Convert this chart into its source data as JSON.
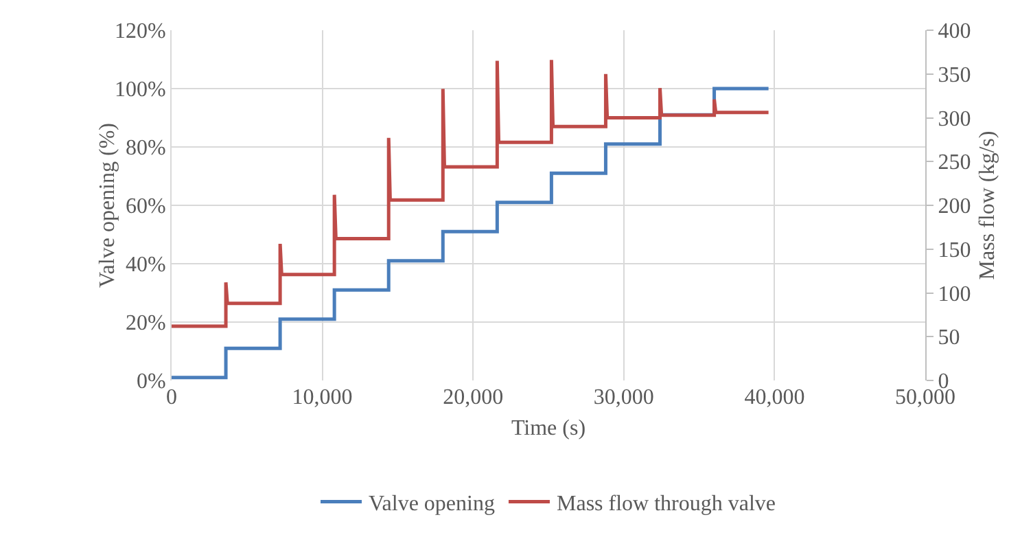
{
  "chart_data": {
    "type": "line",
    "xlabel": "Time (s)",
    "ylabel": "Valve opening (%)",
    "y2label": "Mass flow (kg/s)",
    "xlim": [
      0,
      50000
    ],
    "xticks": [
      {
        "value": 0,
        "label": "0"
      },
      {
        "value": 10000,
        "label": "10,000"
      },
      {
        "value": 20000,
        "label": "20,000"
      },
      {
        "value": 30000,
        "label": "30,000"
      },
      {
        "value": 40000,
        "label": "40,000"
      },
      {
        "value": 50000,
        "label": "50,000"
      }
    ],
    "ylim": [
      0,
      120
    ],
    "yticks": [
      {
        "value": 0,
        "label": "0%"
      },
      {
        "value": 20,
        "label": "20%"
      },
      {
        "value": 40,
        "label": "40%"
      },
      {
        "value": 60,
        "label": "60%"
      },
      {
        "value": 80,
        "label": "80%"
      },
      {
        "value": 100,
        "label": "100%"
      },
      {
        "value": 120,
        "label": "120%"
      }
    ],
    "y2lim": [
      0,
      400
    ],
    "y2ticks": [
      0,
      50,
      100,
      150,
      200,
      250,
      300,
      350,
      400
    ],
    "grid": true,
    "legend": "bottom",
    "series": [
      {
        "name": "Valve opening",
        "type": "step",
        "color": "#4a7ebb",
        "x": [
          0,
          3600,
          7200,
          10800,
          14400,
          18000,
          21600,
          25200,
          28800,
          32400,
          36000,
          39600
        ],
        "values": [
          1,
          11,
          21,
          31,
          41,
          51,
          61,
          71,
          81,
          91,
          100,
          100
        ]
      },
      {
        "name": "Mass flow through valve",
        "axis": "y2",
        "color": "#be4b48",
        "x": [
          0,
          3600,
          3600,
          3700,
          7200,
          7200,
          7300,
          10800,
          10800,
          10900,
          14400,
          14400,
          14500,
          18000,
          18000,
          18100,
          21600,
          21600,
          21700,
          25200,
          25200,
          25300,
          28800,
          28800,
          28900,
          32400,
          32400,
          32500,
          36000,
          36000,
          36100,
          39600
        ],
        "values": [
          62,
          62,
          112,
          88,
          88,
          156,
          121,
          121,
          212,
          162,
          162,
          277,
          206,
          206,
          333,
          244,
          244,
          365,
          272,
          272,
          366,
          290,
          290,
          350,
          300,
          300,
          334,
          303,
          303,
          321,
          306,
          306
        ]
      }
    ]
  }
}
